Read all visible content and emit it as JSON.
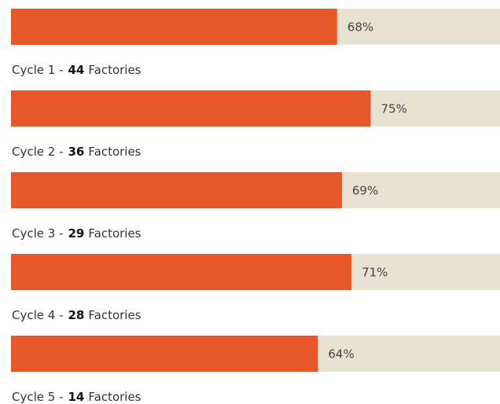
{
  "chart_data": {
    "type": "bar",
    "orientation": "horizontal",
    "categories": [
      "Cycle 1 -",
      "Cycle 2 -",
      "Cycle 3 -",
      "Cycle 4 -",
      "Cycle 5 -"
    ],
    "factories": [
      44,
      36,
      29,
      28,
      14
    ],
    "factories_unit": "Factories",
    "values": [
      68,
      75,
      69,
      71,
      64
    ],
    "value_labels": [
      "68%",
      "75%",
      "69%",
      "71%",
      "64%"
    ],
    "xlim": [
      0,
      100
    ],
    "color": "#e8572a",
    "track_color": "#e8e2d3"
  }
}
